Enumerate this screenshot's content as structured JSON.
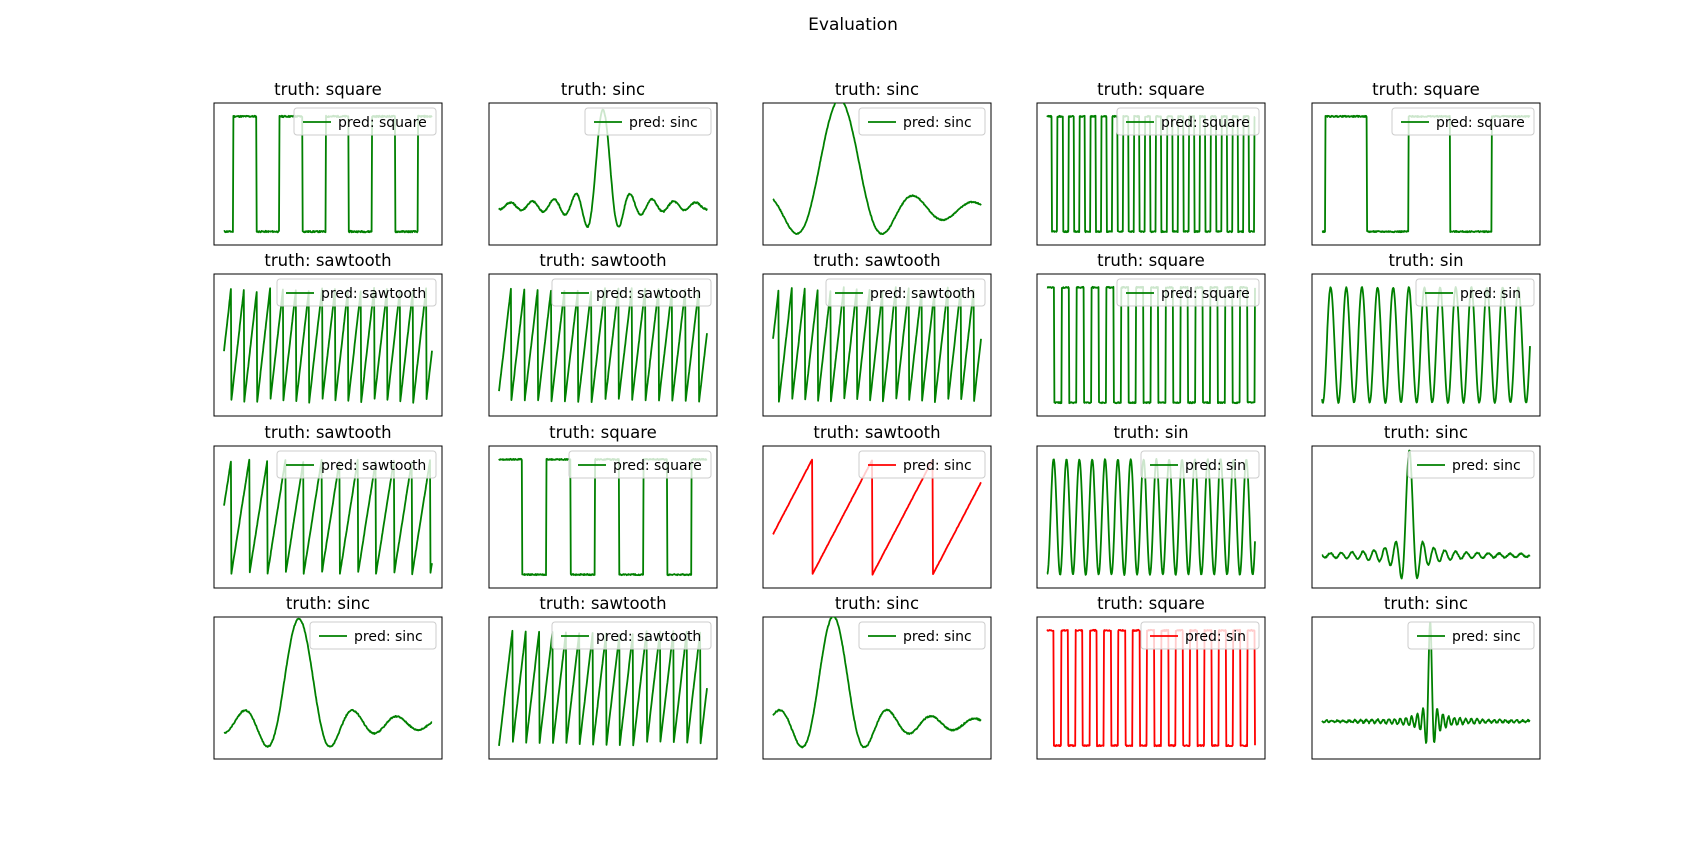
{
  "figure": {
    "title": "Evaluation"
  },
  "colors": {
    "correct": "#008000",
    "incorrect": "#ff0000",
    "axes": "#000000",
    "legend_border": "#cccccc"
  },
  "chart_data": [
    {
      "type": "line",
      "title": "truth: square",
      "truth": "square",
      "legend": "pred: square",
      "color": "#008000",
      "series": [
        {
          "name": "pred: square",
          "kind": "square",
          "cycles": 4.5,
          "phase": 0.8,
          "noise": 0.012
        }
      ]
    },
    {
      "type": "line",
      "title": "truth: sinc",
      "truth": "sinc",
      "legend": "pred: sinc",
      "color": "#008000",
      "series": [
        {
          "name": "pred: sinc",
          "kind": "sinc",
          "center": 0.5,
          "freq": 60,
          "amp": 0.75,
          "base": 0.25,
          "noise": 0.012
        }
      ]
    },
    {
      "type": "line",
      "title": "truth: sinc",
      "truth": "sinc",
      "legend": "pred: sinc",
      "color": "#008000",
      "series": [
        {
          "name": "pred: sinc",
          "kind": "sinc",
          "center": 0.32,
          "freq": 22,
          "amp": 0.86,
          "base": 0.22,
          "noise": 0.008
        }
      ]
    },
    {
      "type": "line",
      "title": "truth: square",
      "truth": "square",
      "legend": "pred: square",
      "color": "#008000",
      "series": [
        {
          "name": "pred: square",
          "kind": "square",
          "cycles": 19,
          "phase": 0.05,
          "noise": 0.01
        }
      ]
    },
    {
      "type": "line",
      "title": "truth: square",
      "truth": "square",
      "legend": "pred: square",
      "color": "#008000",
      "series": [
        {
          "name": "pred: square",
          "kind": "square",
          "cycles": 2.5,
          "phase": 0.96,
          "noise": 0.01
        }
      ]
    },
    {
      "type": "line",
      "title": "truth: sawtooth",
      "truth": "sawtooth",
      "legend": "pred: sawtooth",
      "color": "#008000",
      "series": [
        {
          "name": "pred: sawtooth",
          "kind": "sawtooth",
          "cycles": 16,
          "phase": 0.45,
          "noise": 0.008
        }
      ]
    },
    {
      "type": "line",
      "title": "truth: sawtooth",
      "truth": "sawtooth",
      "legend": "pred: sawtooth",
      "color": "#008000",
      "series": [
        {
          "name": "pred: sawtooth",
          "kind": "sawtooth",
          "cycles": 15.5,
          "phase": 0.1,
          "noise": 0.008
        }
      ]
    },
    {
      "type": "line",
      "title": "truth: sawtooth",
      "truth": "sawtooth",
      "legend": "pred: sawtooth",
      "color": "#008000",
      "series": [
        {
          "name": "pred: sawtooth",
          "kind": "sawtooth",
          "cycles": 16,
          "phase": 0.55,
          "noise": 0.008
        }
      ]
    },
    {
      "type": "line",
      "title": "truth: square",
      "truth": "square",
      "legend": "pred: square",
      "color": "#008000",
      "series": [
        {
          "name": "pred: square",
          "kind": "square",
          "cycles": 14,
          "phase": 0.02,
          "noise": 0.01
        }
      ]
    },
    {
      "type": "line",
      "title": "truth: sin",
      "truth": "sin",
      "legend": "pred: sin",
      "color": "#008000",
      "series": [
        {
          "name": "pred: sin",
          "kind": "sin",
          "cycles": 13.3,
          "phase": -1.9,
          "noise": 0.008
        }
      ]
    },
    {
      "type": "line",
      "title": "truth: sawtooth",
      "truth": "sawtooth",
      "legend": "pred: sawtooth",
      "color": "#008000",
      "series": [
        {
          "name": "pred: sawtooth",
          "kind": "sawtooth",
          "cycles": 11.5,
          "phase": 0.6,
          "noise": 0.008
        }
      ]
    },
    {
      "type": "line",
      "title": "truth: square",
      "truth": "square",
      "legend": "pred: square",
      "color": "#008000",
      "series": [
        {
          "name": "pred: square",
          "kind": "square",
          "cycles": 4.3,
          "phase": 0.02,
          "noise": 0.01
        }
      ]
    },
    {
      "type": "line",
      "title": "truth: sawtooth",
      "truth": "sawtooth",
      "legend": "pred: sinc",
      "color": "#ff0000",
      "series": [
        {
          "name": "pred: sinc",
          "kind": "sawtooth",
          "cycles": 3.45,
          "phase": 0.35,
          "noise": 0.004
        }
      ]
    },
    {
      "type": "line",
      "title": "truth: sin",
      "truth": "sin",
      "legend": "pred: sin",
      "color": "#008000",
      "series": [
        {
          "name": "pred: sin",
          "kind": "sin",
          "cycles": 16.2,
          "phase": -1.7,
          "noise": 0.008
        }
      ]
    },
    {
      "type": "line",
      "title": "truth: sinc",
      "truth": "sinc",
      "legend": "pred: sinc",
      "color": "#008000",
      "series": [
        {
          "name": "pred: sinc",
          "kind": "sinc",
          "center": 0.42,
          "freq": 120,
          "amp": 0.82,
          "base": 0.2,
          "noise": 0.01
        }
      ]
    },
    {
      "type": "line",
      "title": "truth: sinc",
      "truth": "sinc",
      "legend": "pred: sinc",
      "color": "#008000",
      "series": [
        {
          "name": "pred: sinc",
          "kind": "sinc",
          "center": 0.36,
          "freq": 30,
          "amp": 0.82,
          "base": 0.22,
          "noise": 0.01
        }
      ]
    },
    {
      "type": "line",
      "title": "truth: sawtooth",
      "truth": "sawtooth",
      "legend": "pred: sawtooth",
      "color": "#008000",
      "series": [
        {
          "name": "pred: sawtooth",
          "kind": "sawtooth",
          "cycles": 15.5,
          "phase": 0.0,
          "noise": 0.008
        }
      ]
    },
    {
      "type": "line",
      "title": "truth: sinc",
      "truth": "sinc",
      "legend": "pred: sinc",
      "color": "#008000",
      "series": [
        {
          "name": "pred: sinc",
          "kind": "sinc",
          "center": 0.29,
          "freq": 30,
          "amp": 0.84,
          "base": 0.22,
          "noise": 0.01
        }
      ]
    },
    {
      "type": "line",
      "title": "truth: square",
      "truth": "square",
      "legend": "pred: sin",
      "color": "#ff0000",
      "series": [
        {
          "name": "pred: sin",
          "kind": "square",
          "cycles": 14.5,
          "phase": 0.03,
          "noise": 0.01
        }
      ]
    },
    {
      "type": "line",
      "title": "truth: sinc",
      "truth": "sinc",
      "legend": "pred: sinc",
      "color": "#008000",
      "series": [
        {
          "name": "pred: sinc",
          "kind": "sinc",
          "center": 0.52,
          "freq": 230,
          "amp": 0.78,
          "base": 0.24,
          "noise": 0.012
        }
      ]
    }
  ]
}
